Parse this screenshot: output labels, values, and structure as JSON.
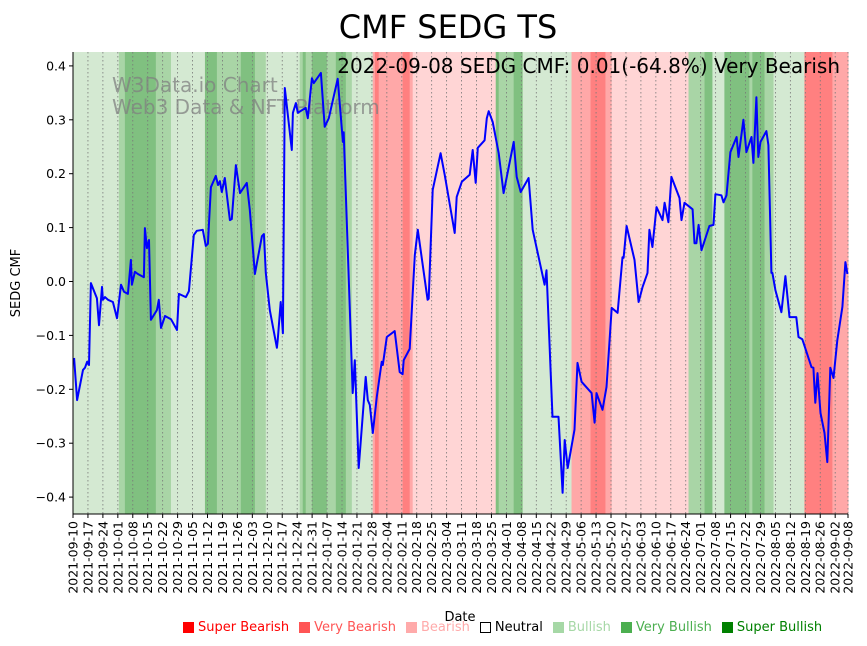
{
  "chart_data": {
    "type": "line",
    "title": "CMF SEDG TS",
    "annotation": "2022-09-08 SEDG CMF: 0.01(-64.8%) Very Bearish",
    "watermark": [
      "W3Data.io Chart",
      "Web3 Data & NFT Platform"
    ],
    "xlabel": "Date",
    "ylabel": "SEDG CMF",
    "x_origin_date": "2021-09-10",
    "x_unit": "days since 2021-09-10",
    "xlim": [
      0,
      363
    ],
    "ylim": [
      -0.43,
      0.426
    ],
    "yticks": [
      -0.4,
      -0.3,
      -0.2,
      -0.1,
      0.0,
      0.1,
      0.2,
      0.3,
      0.4
    ],
    "ytick_labels": [
      "−0.4",
      "−0.3",
      "−0.2",
      "−0.1",
      "0.0",
      "0.1",
      "0.2",
      "0.3",
      "0.4"
    ],
    "xtick_labels": [
      "2021-09-10",
      "2021-09-17",
      "2021-09-24",
      "2021-10-01",
      "2021-10-08",
      "2021-10-15",
      "2021-10-22",
      "2021-10-29",
      "2021-11-05",
      "2021-11-12",
      "2021-11-19",
      "2021-11-26",
      "2021-12-03",
      "2021-12-10",
      "2021-12-17",
      "2021-12-24",
      "2021-12-31",
      "2022-01-07",
      "2022-01-14",
      "2022-01-21",
      "2022-01-28",
      "2022-02-04",
      "2022-02-11",
      "2022-02-18",
      "2022-02-25",
      "2022-03-04",
      "2022-03-11",
      "2022-03-18",
      "2022-03-25",
      "2022-04-01",
      "2022-04-08",
      "2022-04-15",
      "2022-04-22",
      "2022-04-29",
      "2022-05-06",
      "2022-05-13",
      "2022-05-20",
      "2022-05-27",
      "2022-06-03",
      "2022-06-10",
      "2022-06-17",
      "2022-06-24",
      "2022-07-01",
      "2022-07-08",
      "2022-07-15",
      "2022-07-22",
      "2022-07-29",
      "2022-08-05",
      "2022-08-12",
      "2022-08-19",
      "2022-08-26",
      "2022-09-02",
      "2022-09-08"
    ],
    "xtick_days": [
      0,
      7,
      14,
      21,
      28,
      35,
      42,
      49,
      56,
      63,
      70,
      77,
      84,
      91,
      98,
      105,
      112,
      119,
      126,
      133,
      140,
      147,
      154,
      161,
      168,
      175,
      182,
      189,
      196,
      203,
      210,
      217,
      224,
      231,
      238,
      245,
      252,
      259,
      266,
      273,
      280,
      287,
      294,
      301,
      308,
      315,
      322,
      329,
      336,
      343,
      350,
      357,
      363
    ],
    "grid": "vertical dotted at x ticks",
    "line_color": "#0000ff",
    "series": [
      {
        "name": "SEDG CMF",
        "points": [
          [
            0.5,
            -0.142
          ],
          [
            1.9,
            -0.22
          ],
          [
            4.7,
            -0.164
          ],
          [
            5.6,
            -0.16
          ],
          [
            6.6,
            -0.149
          ],
          [
            7.5,
            -0.155
          ],
          [
            8.4,
            -0.003
          ],
          [
            11.2,
            -0.031
          ],
          [
            12.2,
            -0.081
          ],
          [
            13.6,
            -0.01
          ],
          [
            14.0,
            -0.034
          ],
          [
            15.0,
            -0.029
          ],
          [
            16.4,
            -0.034
          ],
          [
            18.7,
            -0.038
          ],
          [
            20.6,
            -0.068
          ],
          [
            22.5,
            -0.006
          ],
          [
            23.9,
            -0.019
          ],
          [
            25.7,
            -0.023
          ],
          [
            27.1,
            0.04
          ],
          [
            27.6,
            -0.006
          ],
          [
            29.0,
            0.018
          ],
          [
            30.4,
            0.014
          ],
          [
            33.2,
            0.008
          ],
          [
            33.7,
            0.099
          ],
          [
            34.6,
            0.062
          ],
          [
            35.6,
            0.077
          ],
          [
            36.5,
            -0.071
          ],
          [
            39.3,
            -0.053
          ],
          [
            40.2,
            -0.034
          ],
          [
            41.2,
            -0.086
          ],
          [
            43.1,
            -0.064
          ],
          [
            45.9,
            -0.07
          ],
          [
            48.7,
            -0.09
          ],
          [
            49.6,
            -0.023
          ],
          [
            52.9,
            -0.029
          ],
          [
            54.3,
            -0.018
          ],
          [
            56.6,
            0.086
          ],
          [
            58.0,
            0.094
          ],
          [
            60.8,
            0.096
          ],
          [
            62.2,
            0.066
          ],
          [
            63.2,
            0.07
          ],
          [
            64.6,
            0.175
          ],
          [
            66.9,
            0.196
          ],
          [
            67.9,
            0.179
          ],
          [
            68.8,
            0.186
          ],
          [
            69.7,
            0.166
          ],
          [
            71.1,
            0.192
          ],
          [
            73.5,
            0.114
          ],
          [
            74.4,
            0.116
          ],
          [
            76.3,
            0.216
          ],
          [
            78.2,
            0.164
          ],
          [
            81.4,
            0.183
          ],
          [
            82.8,
            0.133
          ],
          [
            85.2,
            0.014
          ],
          [
            88.5,
            0.084
          ],
          [
            89.4,
            0.088
          ],
          [
            90.3,
            0.016
          ],
          [
            92.2,
            -0.053
          ],
          [
            95.5,
            -0.123
          ],
          [
            95.9,
            -0.109
          ],
          [
            97.3,
            -0.038
          ],
          [
            98.3,
            -0.096
          ],
          [
            99.2,
            0.359
          ],
          [
            102.5,
            0.244
          ],
          [
            103.0,
            0.313
          ],
          [
            104.4,
            0.331
          ],
          [
            105.3,
            0.313
          ],
          [
            109.0,
            0.322
          ],
          [
            110.0,
            0.303
          ],
          [
            111.9,
            0.377
          ],
          [
            112.8,
            0.368
          ],
          [
            116.1,
            0.387
          ],
          [
            117.9,
            0.287
          ],
          [
            119.8,
            0.303
          ],
          [
            124.0,
            0.376
          ],
          [
            126.4,
            0.259
          ],
          [
            126.8,
            0.277
          ],
          [
            131.0,
            -0.207
          ],
          [
            132.0,
            -0.146
          ],
          [
            133.8,
            -0.346
          ],
          [
            137.1,
            -0.177
          ],
          [
            138.1,
            -0.22
          ],
          [
            139.0,
            -0.229
          ],
          [
            140.4,
            -0.281
          ],
          [
            142.3,
            -0.214
          ],
          [
            144.6,
            -0.149
          ],
          [
            145.1,
            -0.155
          ],
          [
            147.0,
            -0.103
          ],
          [
            150.7,
            -0.092
          ],
          [
            153.0,
            -0.168
          ],
          [
            154.4,
            -0.172
          ],
          [
            154.9,
            -0.146
          ],
          [
            157.7,
            -0.125
          ],
          [
            160.1,
            0.049
          ],
          [
            161.5,
            0.096
          ],
          [
            166.1,
            -0.034
          ],
          [
            166.6,
            -0.032
          ],
          [
            168.5,
            0.17
          ],
          [
            172.2,
            0.238
          ],
          [
            174.1,
            0.198
          ],
          [
            178.8,
            0.09
          ],
          [
            179.7,
            0.157
          ],
          [
            182.1,
            0.185
          ],
          [
            185.8,
            0.198
          ],
          [
            187.2,
            0.244
          ],
          [
            188.6,
            0.183
          ],
          [
            189.6,
            0.248
          ],
          [
            192.8,
            0.262
          ],
          [
            193.8,
            0.303
          ],
          [
            194.7,
            0.316
          ],
          [
            196.6,
            0.296
          ],
          [
            199.4,
            0.238
          ],
          [
            201.7,
            0.164
          ],
          [
            206.4,
            0.259
          ],
          [
            207.8,
            0.194
          ],
          [
            209.7,
            0.166
          ],
          [
            213.4,
            0.192
          ],
          [
            215.3,
            0.096
          ],
          [
            220.9,
            -0.006
          ],
          [
            221.8,
            0.021
          ],
          [
            224.6,
            -0.251
          ],
          [
            227.4,
            -0.251
          ],
          [
            229.3,
            -0.392
          ],
          [
            230.3,
            -0.294
          ],
          [
            231.7,
            -0.346
          ],
          [
            234.9,
            -0.275
          ],
          [
            236.3,
            -0.151
          ],
          [
            238.2,
            -0.186
          ],
          [
            242.9,
            -0.207
          ],
          [
            244.3,
            -0.262
          ],
          [
            245.2,
            -0.207
          ],
          [
            248.0,
            -0.238
          ],
          [
            249.9,
            -0.196
          ],
          [
            252.3,
            -0.049
          ],
          [
            255.1,
            -0.058
          ],
          [
            257.4,
            0.045
          ],
          [
            257.9,
            0.044
          ],
          [
            259.3,
            0.103
          ],
          [
            263.0,
            0.04
          ],
          [
            264.9,
            -0.038
          ],
          [
            266.8,
            -0.01
          ],
          [
            269.1,
            0.016
          ],
          [
            270.0,
            0.096
          ],
          [
            271.4,
            0.064
          ],
          [
            273.3,
            0.138
          ],
          [
            276.1,
            0.114
          ],
          [
            277.1,
            0.146
          ],
          [
            278.9,
            0.11
          ],
          [
            280.3,
            0.194
          ],
          [
            284.1,
            0.155
          ],
          [
            285.0,
            0.114
          ],
          [
            286.4,
            0.146
          ],
          [
            290.2,
            0.134
          ],
          [
            291.1,
            0.071
          ],
          [
            292.0,
            0.071
          ],
          [
            293.0,
            0.105
          ],
          [
            294.4,
            0.058
          ],
          [
            298.1,
            0.103
          ],
          [
            300.0,
            0.105
          ],
          [
            300.9,
            0.162
          ],
          [
            303.7,
            0.16
          ],
          [
            304.7,
            0.147
          ],
          [
            306.1,
            0.16
          ],
          [
            307.9,
            0.24
          ],
          [
            310.8,
            0.268
          ],
          [
            311.7,
            0.231
          ],
          [
            314.0,
            0.3
          ],
          [
            315.4,
            0.24
          ],
          [
            317.8,
            0.268
          ],
          [
            318.7,
            0.22
          ],
          [
            320.1,
            0.342
          ],
          [
            321.0,
            0.231
          ],
          [
            322.0,
            0.259
          ],
          [
            324.8,
            0.279
          ],
          [
            325.7,
            0.253
          ],
          [
            327.1,
            0.016
          ],
          [
            327.6,
            0.016
          ],
          [
            329.0,
            -0.016
          ],
          [
            331.8,
            -0.057
          ],
          [
            333.7,
            0.01
          ],
          [
            335.6,
            -0.066
          ],
          [
            338.8,
            -0.066
          ],
          [
            339.8,
            -0.103
          ],
          [
            341.6,
            -0.107
          ],
          [
            345.9,
            -0.159
          ],
          [
            346.8,
            -0.16
          ],
          [
            347.7,
            -0.225
          ],
          [
            348.7,
            -0.17
          ],
          [
            350.1,
            -0.244
          ],
          [
            352.0,
            -0.281
          ],
          [
            353.3,
            -0.335
          ],
          [
            354.7,
            -0.16
          ],
          [
            356.2,
            -0.179
          ],
          [
            358.0,
            -0.109
          ],
          [
            360.4,
            -0.047
          ],
          [
            361.8,
            0.036
          ],
          [
            362.7,
            0.014
          ]
        ]
      }
    ],
    "bands": [
      [
        0,
        21.5,
        "Bullish"
      ],
      [
        21.5,
        24.3,
        "Very Bullish"
      ],
      [
        24.3,
        38.8,
        "Super Bullish"
      ],
      [
        38.8,
        45.9,
        "Very Bullish"
      ],
      [
        45.9,
        61.8,
        "Bullish"
      ],
      [
        61.8,
        67.4,
        "Super Bullish"
      ],
      [
        67.4,
        78.6,
        "Very Bullish"
      ],
      [
        78.6,
        85.2,
        "Super Bullish"
      ],
      [
        85.2,
        90.3,
        "Very Bullish"
      ],
      [
        90.3,
        106.2,
        "Bullish"
      ],
      [
        106.2,
        107.6,
        "Very Bullish"
      ],
      [
        107.6,
        109.0,
        "Super Bullish"
      ],
      [
        109.0,
        111.9,
        "Very Bullish"
      ],
      [
        111.9,
        118.9,
        "Super Bullish"
      ],
      [
        118.9,
        123.1,
        "Very Bullish"
      ],
      [
        123.1,
        127.8,
        "Super Bullish"
      ],
      [
        127.8,
        130.6,
        "Very Bullish"
      ],
      [
        130.6,
        140.4,
        "Bullish"
      ],
      [
        140.4,
        141.4,
        "Very Bearish"
      ],
      [
        141.4,
        143.2,
        "Super Bearish"
      ],
      [
        143.2,
        154.4,
        "Very Bearish"
      ],
      [
        154.4,
        157.7,
        "Super Bearish"
      ],
      [
        157.7,
        159.1,
        "Very Bearish"
      ],
      [
        159.1,
        198.0,
        "Bearish"
      ],
      [
        198.0,
        199.4,
        "Super Bullish"
      ],
      [
        199.4,
        206.4,
        "Very Bullish"
      ],
      [
        206.4,
        210.6,
        "Super Bullish"
      ],
      [
        210.6,
        233.5,
        "Bullish"
      ],
      [
        233.5,
        242.4,
        "Very Bearish"
      ],
      [
        242.4,
        249.4,
        "Super Bearish"
      ],
      [
        249.4,
        252.3,
        "Very Bearish"
      ],
      [
        252.3,
        288.3,
        "Bearish"
      ],
      [
        288.3,
        295.8,
        "Very Bullish"
      ],
      [
        295.8,
        299.5,
        "Super Bullish"
      ],
      [
        299.5,
        305.1,
        "Bullish"
      ],
      [
        305.1,
        316.8,
        "Super Bullish"
      ],
      [
        316.8,
        318.2,
        "Very Bullish"
      ],
      [
        318.2,
        323.9,
        "Super Bullish"
      ],
      [
        323.9,
        328.1,
        "Very Bullish"
      ],
      [
        328.1,
        342.6,
        "Bullish"
      ],
      [
        342.6,
        355.7,
        "Super Bearish"
      ],
      [
        355.7,
        363,
        "Very Bearish"
      ]
    ],
    "band_colors": {
      "Super Bearish": "#ff8080",
      "Very Bearish": "#ffa8a8",
      "Bearish": "#ffd5d5",
      "Bullish": "#d4e9d2",
      "Very Bullish": "#a9d5a6",
      "Super Bullish": "#80c080"
    },
    "legend": [
      {
        "label": "Super Bearish",
        "color": "#ff0000"
      },
      {
        "label": "Very Bearish",
        "color": "#ff5555"
      },
      {
        "label": "Bearish",
        "color": "#ffaaaa"
      },
      {
        "label": "Neutral",
        "color": "#000000"
      },
      {
        "label": "Bullish",
        "color": "#a6d8a6"
      },
      {
        "label": "Very Bullish",
        "color": "#4caf50"
      },
      {
        "label": "Super Bullish",
        "color": "#008000"
      }
    ],
    "legend_placement": "bottom"
  }
}
